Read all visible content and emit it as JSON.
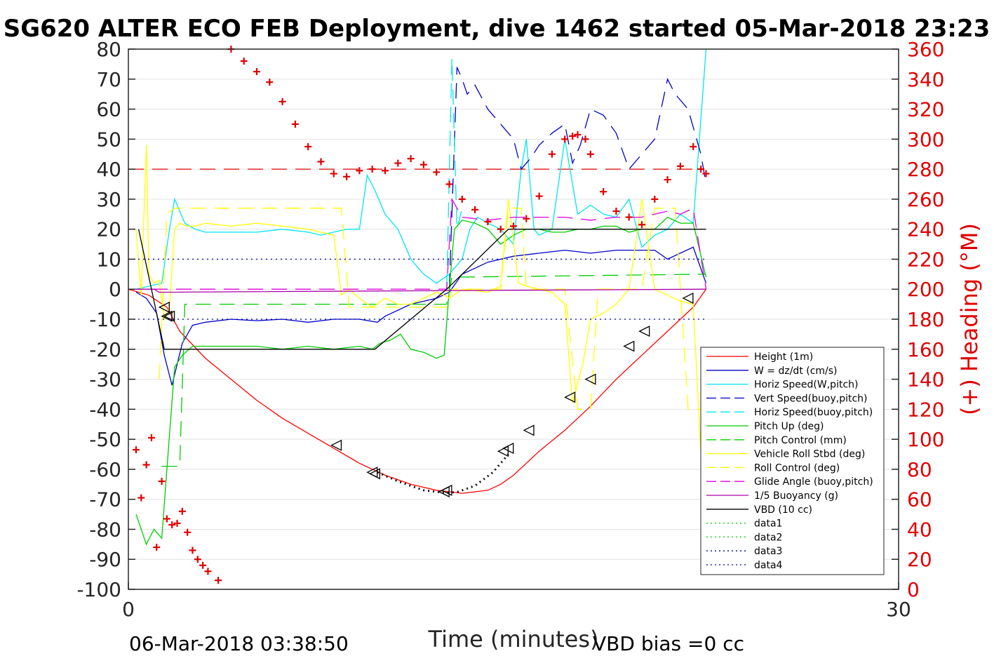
{
  "chart_data": {
    "type": "line",
    "title": "SG620 ALTER ECO FEB Deployment, dive 1462 started 05-Mar-2018 23:23",
    "xlabel": "Time (minutes)",
    "ylabel_right": "(+) Heading (°M)",
    "xlim": [
      0,
      30
    ],
    "ylim_left": [
      -100,
      80
    ],
    "ylim_right": [
      0,
      360
    ],
    "x_ticks": [
      "0",
      "30"
    ],
    "y_ticks_left": [
      "80",
      "70",
      "60",
      "50",
      "40",
      "30",
      "20",
      "10",
      "0",
      "-10",
      "-20",
      "-30",
      "-40",
      "-50",
      "-60",
      "-70",
      "-80",
      "-90",
      "-100"
    ],
    "y_ticks_right": [
      "360",
      "340",
      "320",
      "300",
      "280",
      "260",
      "240",
      "220",
      "200",
      "180",
      "160",
      "140",
      "120",
      "100",
      "80",
      "60",
      "40",
      "20",
      "0"
    ],
    "grid": "horizontal",
    "legend_position": "lower-right",
    "footer_left": "06-Mar-2018 03:38:50",
    "footer_right": "VBD bias =0 cc",
    "legend": [
      {
        "name": "Height (1m)",
        "color": "#ff0000",
        "dash": "solid"
      },
      {
        "name": "W = dz/dt (cm/s)",
        "color": "#0000c8",
        "dash": "solid"
      },
      {
        "name": "Horiz Speed(W,pitch)",
        "color": "#00e5ee",
        "dash": "solid"
      },
      {
        "name": "Vert Speed(buoy,pitch)",
        "color": "#0000c8",
        "dash": "dashed"
      },
      {
        "name": "Horiz Speed(buoy,pitch)",
        "color": "#00e5ee",
        "dash": "dashed"
      },
      {
        "name": "Pitch Up (deg)",
        "color": "#00cc00",
        "dash": "solid"
      },
      {
        "name": "Pitch Control (mm)",
        "color": "#00cc00",
        "dash": "dashed"
      },
      {
        "name": "Vehicle Roll Stbd (deg)",
        "color": "#ffff00",
        "dash": "solid"
      },
      {
        "name": "Roll Control (deg)",
        "color": "#ffff00",
        "dash": "dashed"
      },
      {
        "name": "Glide Angle (buoy,pitch)",
        "color": "#dd00dd",
        "dash": "dashed"
      },
      {
        "name": "1/5 Buoyancy (g)",
        "color": "#aa00aa",
        "dash": "solid"
      },
      {
        "name": "VBD (10 cc)",
        "color": "#000000",
        "dash": "solid"
      },
      {
        "name": "data1",
        "color": "#00cc00",
        "dash": "dotted"
      },
      {
        "name": "data2",
        "color": "#00cc00",
        "dash": "dotted"
      },
      {
        "name": "data3",
        "color": "#0000a0",
        "dash": "dotted"
      },
      {
        "name": "data4",
        "color": "#0000a0",
        "dash": "dotted"
      }
    ],
    "series": [
      {
        "name": "Height (1m)",
        "color": "#ff0000",
        "dash": "solid",
        "x": [
          0,
          0.8,
          1.5,
          2,
          3,
          4,
          5,
          6,
          7,
          8,
          9,
          10,
          11,
          12,
          12.5,
          13,
          13.5,
          14,
          14.5,
          15,
          15.5,
          16,
          17,
          18,
          19,
          20,
          21,
          22,
          22.5
        ],
        "y": [
          0,
          -2,
          -6,
          -14,
          -23,
          -30,
          -37,
          -43,
          -48,
          -53,
          -58,
          -62,
          -65,
          -67,
          -67.5,
          -68,
          -67.5,
          -67,
          -65,
          -62,
          -58,
          -54,
          -47,
          -39,
          -30,
          -22,
          -14,
          -6,
          0
        ]
      },
      {
        "name": "W = dz/dt (cm/s)",
        "color": "#0000c8",
        "dash": "solid",
        "x": [
          0.3,
          0.7,
          1.1,
          1.4,
          1.7,
          2.1,
          2.5,
          3,
          4,
          5,
          6,
          7,
          8,
          9,
          9.7,
          10,
          11,
          12,
          12.5,
          13,
          13.5,
          14,
          15,
          16,
          17,
          18,
          19,
          20,
          20.5,
          21,
          22,
          22.5
        ],
        "y": [
          -1,
          -3,
          -8,
          -22,
          -32,
          -18,
          -12,
          -11,
          -10,
          -10.5,
          -10,
          -11,
          -10,
          -10,
          -11,
          -9,
          -5,
          -3,
          -1,
          5,
          7,
          9,
          11,
          12,
          13,
          12,
          13,
          13,
          13,
          10,
          14,
          2
        ]
      },
      {
        "name": "Horiz Speed(W,pitch)",
        "color": "#00e5ee",
        "dash": "solid",
        "x": [
          0.3,
          0.8,
          1.3,
          1.6,
          1.8,
          2.0,
          2.2,
          2.6,
          3,
          4,
          5,
          6,
          7,
          7.5,
          8,
          8.5,
          9,
          9.3,
          9.6,
          10,
          10.5,
          11,
          11.5,
          12,
          12.5,
          13,
          13.3,
          13.6,
          14,
          14.5,
          15,
          15.3,
          15.5,
          15.8,
          16,
          16.5,
          17,
          17.5,
          18,
          18.5,
          19,
          19.5,
          20,
          20.5,
          21,
          21.5,
          22,
          22.5
        ],
        "y": [
          0,
          1,
          2,
          20,
          30,
          26,
          22,
          20,
          19,
          19,
          19,
          20,
          19,
          18,
          19,
          20,
          20,
          38,
          33,
          25,
          20,
          10,
          5,
          2,
          5,
          10,
          20,
          24,
          22,
          20,
          15,
          40,
          50,
          20,
          18,
          20,
          50,
          25,
          28,
          25,
          24,
          30,
          14,
          18,
          20,
          25,
          22,
          80
        ]
      },
      {
        "name": "Vert Speed(buoy,pitch)",
        "color": "#0000c8",
        "dash": "dashed",
        "x": [
          12.5,
          12.8,
          13,
          13.2,
          13.5,
          14,
          14.5,
          15,
          15.3,
          15.7,
          16,
          16.5,
          17,
          17.3,
          17.6,
          18,
          18.5,
          19,
          19.5,
          20,
          20.5,
          21,
          21.3,
          21.8,
          22.3,
          22.5
        ],
        "y": [
          0,
          74,
          70,
          65,
          68,
          60,
          55,
          50,
          40,
          44,
          48,
          52,
          55,
          42,
          48,
          60,
          58,
          52,
          40,
          45,
          50,
          70,
          65,
          60,
          45,
          35
        ]
      },
      {
        "name": "Horiz Speed(buoy,pitch)",
        "color": "#00e5ee",
        "dash": "dashed",
        "x": [
          12.4,
          12.6,
          12.8,
          13
        ],
        "y": [
          0,
          77,
          20,
          27
        ]
      },
      {
        "name": "Pitch Up (deg)",
        "color": "#00cc00",
        "dash": "solid",
        "x": [
          0.3,
          0.7,
          1.0,
          1.3,
          1.5,
          1.8,
          2.1,
          2.5,
          3,
          4,
          5,
          6,
          7,
          8,
          9,
          9.5,
          9.8,
          10.2,
          10.6,
          11,
          11.5,
          12,
          12.3,
          12.5,
          12.7,
          13,
          13.5,
          14,
          14.5,
          15,
          15.5,
          16,
          16.5,
          17,
          17.5,
          18,
          18.5,
          19,
          19.5,
          20,
          20.5,
          21,
          21.5,
          22,
          22.5
        ],
        "y": [
          -75,
          -85,
          -80,
          -83,
          -60,
          -26,
          -22,
          -19,
          -19,
          -19,
          -19,
          -20,
          -19,
          -20,
          -19,
          -20,
          -18,
          -17,
          -15,
          -20,
          -21,
          -23,
          -22,
          0,
          20,
          23,
          22,
          20,
          15,
          18,
          20,
          20,
          19,
          19,
          20,
          20,
          21,
          21,
          19,
          20,
          20,
          24,
          22,
          22,
          4
        ]
      },
      {
        "name": "Pitch Control (mm)",
        "color": "#00cc00",
        "dash": "dashed",
        "x": [
          1.3,
          2.0,
          2.2,
          12.4,
          12.6,
          22.5
        ],
        "y": [
          -59,
          -59,
          -5,
          -5,
          4,
          5
        ]
      },
      {
        "name": "Vehicle Roll Stbd (deg)",
        "color": "#ffff00",
        "dash": "solid",
        "x": [
          0.3,
          0.5,
          0.7,
          0.8,
          1.0,
          1.2,
          1.4,
          1.6,
          1.8,
          2.0,
          2.3,
          2.6,
          3,
          4,
          5,
          6,
          7,
          7.5,
          8,
          8.3,
          8.6,
          9,
          9.5,
          10,
          10.5,
          11,
          11.5,
          12,
          12.3,
          12.5,
          13,
          14,
          14.5,
          14.8,
          15.2,
          15.5,
          16,
          16.5,
          17,
          17.3,
          17.7,
          18,
          18.5,
          19,
          19.5,
          20,
          20.5,
          21,
          21.5,
          22,
          22.3,
          22.5
        ],
        "y": [
          20,
          -2,
          48,
          5,
          2,
          3,
          -10,
          -6,
          20,
          22,
          21,
          21,
          22,
          21,
          22,
          21,
          20,
          19,
          18,
          -2,
          0,
          -3,
          -6,
          -3,
          -5,
          -5,
          -3,
          -1,
          -2,
          -3,
          0,
          -1,
          1,
          30,
          2,
          1,
          0,
          -1,
          -5,
          -38,
          -25,
          -10,
          -8,
          -5,
          0,
          30,
          0,
          -2,
          -4,
          -5,
          -55,
          -30
        ]
      },
      {
        "name": "Roll Control (deg)",
        "color": "#ffff00",
        "dash": "dashed",
        "x": [
          1.2,
          1.5,
          1.8,
          8.3,
          8.6,
          12.4,
          12.6,
          14.5,
          14.8,
          15.3,
          15.5,
          17,
          17.5,
          18,
          18.3,
          20,
          20.5,
          21.3,
          21.8,
          22.3
        ],
        "y": [
          -30,
          25,
          27,
          27,
          -6,
          -6,
          0,
          0,
          27,
          27,
          0,
          0,
          -40,
          -40,
          0,
          0,
          27,
          27,
          -40,
          -40
        ]
      },
      {
        "name": "Glide Angle (buoy,pitch)",
        "color": "#dd00dd",
        "dash": "dashed",
        "x": [
          0,
          12.4,
          12.6,
          13,
          14,
          15,
          16,
          17,
          18,
          19,
          20,
          20.5,
          21,
          21.5,
          22,
          22.5
        ],
        "y": [
          0,
          0,
          30,
          24,
          23,
          24,
          24,
          24,
          23,
          24,
          24,
          25,
          26,
          25,
          27,
          0
        ]
      },
      {
        "name": "1/5 Buoyancy (g)",
        "color": "#aa00aa",
        "dash": "solid",
        "x": [
          0,
          1.0,
          1.2,
          22.5
        ],
        "y": [
          0,
          0,
          -1,
          0
        ]
      },
      {
        "name": "VBD (10 cc)",
        "color": "#000000",
        "dash": "solid",
        "x": [
          0.4,
          1.4,
          9.6,
          12.4,
          14.8,
          22.5
        ],
        "y": [
          20,
          -20,
          -20,
          0,
          20,
          20
        ]
      },
      {
        "name": "data3",
        "color": "#0000a0",
        "dash": "dotted",
        "x": [
          0,
          22.5
        ],
        "y": [
          10,
          10
        ]
      },
      {
        "name": "data4",
        "color": "#0000a0",
        "dash": "dotted",
        "x": [
          0,
          22.5
        ],
        "y": [
          -10,
          -10
        ]
      },
      {
        "name": "data1",
        "color": "#101010",
        "dash": "dotted",
        "x": [
          9.7,
          10.5,
          11.5,
          12.3,
          12.8,
          13.5,
          14.2,
          14.8
        ],
        "y": [
          -61,
          -64,
          -67,
          -67.8,
          -67.6,
          -65.5,
          -61,
          -55
        ]
      }
    ],
    "heading_series": {
      "name": "Heading",
      "color": "#e00000",
      "marker": "+",
      "axis": "right",
      "x": [
        0.3,
        0.5,
        0.7,
        0.9,
        1.1,
        1.3,
        1.5,
        1.7,
        1.9,
        2.1,
        2.3,
        2.5,
        2.7,
        2.9,
        3.1,
        3.5,
        4,
        4.5,
        5,
        5.5,
        6,
        6.5,
        7,
        7.5,
        8,
        8.5,
        9,
        9.5,
        10,
        10.5,
        11,
        11.5,
        12,
        12.5,
        13,
        13.5,
        14,
        14.5,
        15,
        15.5,
        16,
        16.5,
        17,
        17.3,
        17.5,
        17.8,
        18,
        18.5,
        19,
        19.5,
        20,
        20.5,
        21,
        21.5,
        22,
        22.3,
        22.5
      ],
      "y": [
        93,
        61,
        83,
        101,
        28,
        72,
        47,
        43,
        44,
        52,
        38,
        26,
        20,
        16,
        12,
        6,
        360,
        352,
        345,
        338,
        325,
        310,
        295,
        285,
        277,
        275,
        279,
        280,
        279,
        284,
        287,
        283,
        278,
        270,
        260,
        253,
        245,
        240,
        242,
        247,
        262,
        290,
        300,
        302,
        303,
        300,
        290,
        265,
        252,
        248,
        243,
        260,
        273,
        282,
        295,
        280,
        277
      ]
    },
    "marker_points": [
      {
        "x": 1.4,
        "y": -6
      },
      {
        "x": 1.5,
        "y": -9
      },
      {
        "x": 1.6,
        "y": -9
      },
      {
        "x": 8.1,
        "y": -52
      },
      {
        "x": 9.5,
        "y": -61
      },
      {
        "x": 9.6,
        "y": -61.5
      },
      {
        "x": 12.3,
        "y": -67.5
      },
      {
        "x": 12.4,
        "y": -67
      },
      {
        "x": 14.6,
        "y": -54
      },
      {
        "x": 14.8,
        "y": -53
      },
      {
        "x": 15.6,
        "y": -47
      },
      {
        "x": 17.2,
        "y": -36
      },
      {
        "x": 18.0,
        "y": -30
      },
      {
        "x": 19.5,
        "y": -19
      },
      {
        "x": 20.1,
        "y": -14
      },
      {
        "x": 21.8,
        "y": -3
      }
    ]
  }
}
